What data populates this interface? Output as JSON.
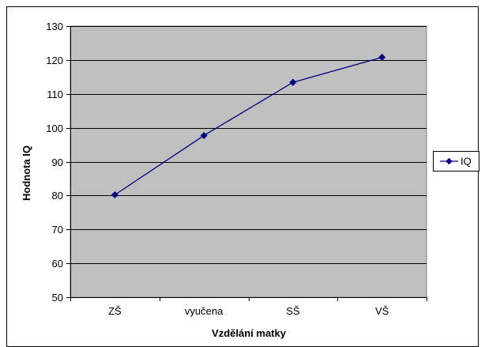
{
  "chart_data": {
    "type": "line",
    "categories": [
      "ZŠ",
      "vyučena",
      "SŠ",
      "VŠ"
    ],
    "series": [
      {
        "name": "IQ",
        "values": [
          80.2,
          97.7,
          113.4,
          120.8
        ],
        "color": "#000080"
      }
    ],
    "xlabel": "Vzdělání matky",
    "ylabel": "Hodnota IQ",
    "ylim": [
      50,
      130
    ],
    "ytick_step": 10,
    "grid": true,
    "legend": "right",
    "plot_background": "#c0c0c0"
  }
}
